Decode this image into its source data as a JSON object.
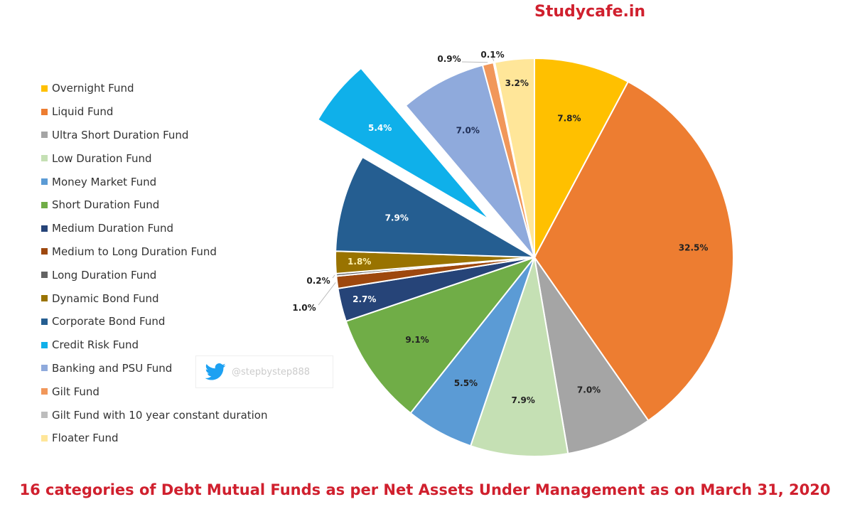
{
  "brand": "Studycafe.in",
  "watermark": {
    "icon": "twitter-bird-icon",
    "handle": "@stepbystep888"
  },
  "chart_data": {
    "type": "pie",
    "title": "16 categories of Debt Mutual Funds as per Net Assets Under Management as on March 31, 2020",
    "unit": "%",
    "start": "12 o'clock, clockwise",
    "legend_position": "left",
    "exploded": "Credit Risk Fund",
    "slices": [
      {
        "name": "Overnight Fund",
        "value": 7.8,
        "label": "7.8%",
        "color": "#ffc000"
      },
      {
        "name": "Liquid Fund",
        "value": 32.5,
        "label": "32.5%",
        "color": "#ed7d31"
      },
      {
        "name": "Ultra Short Duration Fund",
        "value": 7.0,
        "label": "7.0%",
        "color": "#a5a5a5"
      },
      {
        "name": "Low Duration Fund",
        "value": 7.9,
        "label": "7.9%",
        "color": "#c5e0b4"
      },
      {
        "name": "Money Market Fund",
        "value": 5.5,
        "label": "5.5%",
        "color": "#5b9bd5"
      },
      {
        "name": "Short Duration Fund",
        "value": 9.1,
        "label": "9.1%",
        "color": "#70ad47"
      },
      {
        "name": "Medium Duration Fund",
        "value": 2.7,
        "label": "2.7%",
        "color": "#264478"
      },
      {
        "name": "Medium to Long Duration Fund",
        "value": 1.0,
        "label": "1.0%",
        "color": "#9e480e"
      },
      {
        "name": "Long Duration Fund",
        "value": 0.2,
        "label": "0.2%",
        "color": "#636363"
      },
      {
        "name": "Dynamic Bond Fund",
        "value": 1.8,
        "label": "1.8%",
        "color": "#997300"
      },
      {
        "name": "Corporate Bond Fund",
        "value": 7.9,
        "label": "7.9%",
        "color": "#255e91"
      },
      {
        "name": "Credit Risk Fund",
        "value": 5.4,
        "label": "5.4%",
        "color": "#0fb0ea"
      },
      {
        "name": "Banking and PSU Fund",
        "value": 7.0,
        "label": "7.0%",
        "color": "#8faadc"
      },
      {
        "name": "Gilt Fund",
        "value": 0.9,
        "label": "0.9%",
        "color": "#f1975a"
      },
      {
        "name": "Gilt Fund with 10 year constant duration",
        "value": 0.1,
        "label": "0.1%",
        "color": "#bdbdbd"
      },
      {
        "name": "Floater Fund",
        "value": 3.2,
        "label": "3.2%",
        "color": "#ffe699"
      }
    ]
  }
}
